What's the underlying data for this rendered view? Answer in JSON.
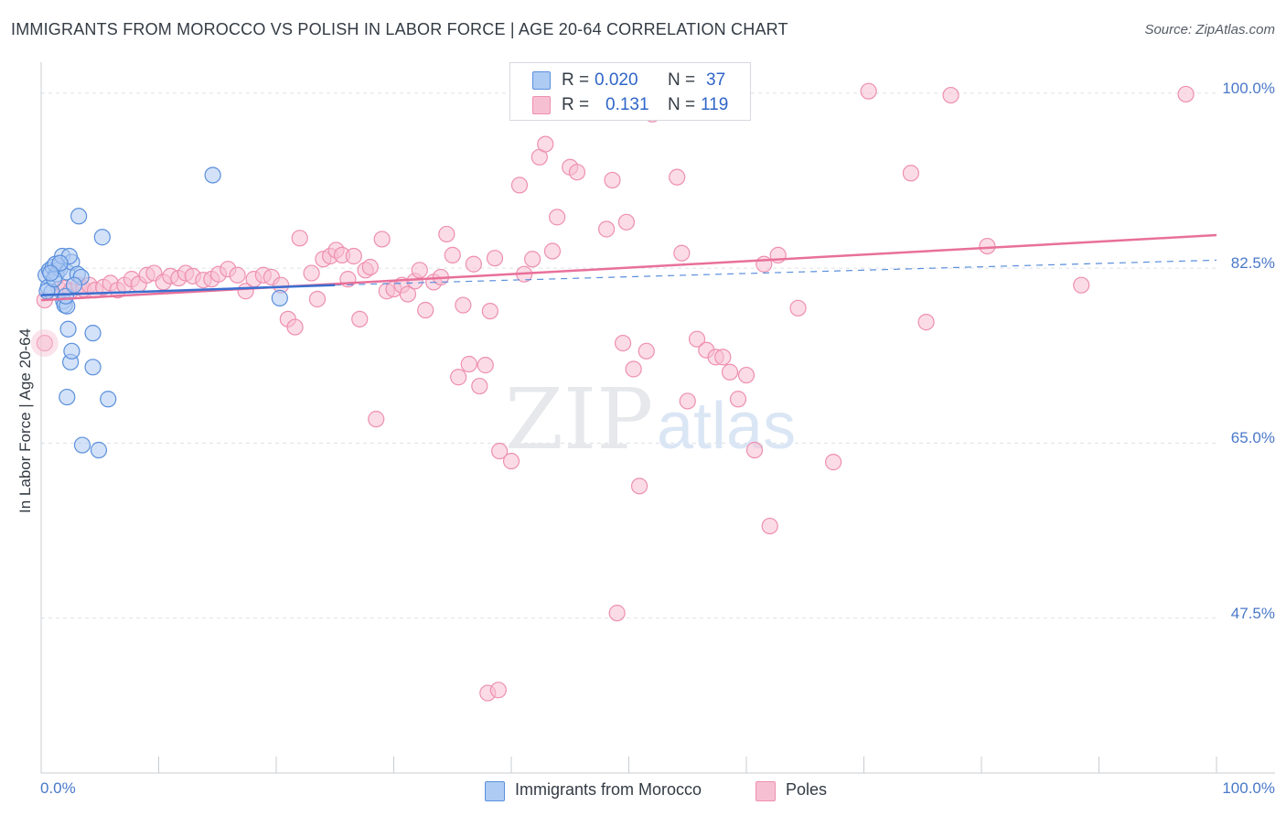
{
  "title": "IMMIGRANTS FROM MOROCCO VS POLISH IN LABOR FORCE | AGE 20-64 CORRELATION CHART",
  "source": "Source: ZipAtlas.com",
  "watermark": {
    "zip": "ZIP",
    "atlas": "atlas"
  },
  "legend": {
    "r_label": "R =",
    "n_label": "N =",
    "series": [
      {
        "r": "0.020",
        "n": "37"
      },
      {
        "r": "0.131",
        "n": "119"
      }
    ]
  },
  "colors": {
    "morocco_fill": "#aecbf3",
    "morocco_stroke": "#5a8fdc",
    "morocco_line": "#3a6fd0",
    "poles_fill": "#f7c0d2",
    "poles_stroke": "#ee8fb0",
    "poles_line": "#e8709a",
    "tick_label": "#4a78c8",
    "grid": "#dde1e6"
  },
  "chart_data": {
    "type": "scatter",
    "title": "IMMIGRANTS FROM MOROCCO VS POLISH IN LABOR FORCE | AGE 20-64 CORRELATION CHART",
    "xlabel": "",
    "ylabel": "In Labor Force | Age 20-64",
    "xlim": [
      0,
      100
    ],
    "ylim": [
      32,
      102
    ],
    "x_tick_labels": [
      "0.0%",
      "100.0%"
    ],
    "y_ticks": [
      100,
      82.5,
      65,
      47.5
    ],
    "y_tick_labels": [
      "100.0%",
      "82.5%",
      "65.0%",
      "47.5%"
    ],
    "grid": true,
    "legend_position": "top-center",
    "series": [
      {
        "name": "Immigrants from Morocco",
        "color": "#5a8fdc",
        "trend": {
          "x": [
            0,
            25
          ],
          "y": [
            79.8,
            80.8
          ],
          "dashed_to": [
            100,
            83.3
          ]
        },
        "points": [
          [
            0.4,
            81.8
          ],
          [
            0.7,
            82.3
          ],
          [
            1.0,
            82.6
          ],
          [
            1.3,
            81.9
          ],
          [
            0.6,
            80.6
          ],
          [
            0.9,
            80.1
          ],
          [
            1.5,
            82.7
          ],
          [
            1.6,
            82.4
          ],
          [
            1.2,
            82.9
          ],
          [
            1.8,
            83.7
          ],
          [
            2.2,
            82.1
          ],
          [
            2.6,
            83.1
          ],
          [
            2.4,
            83.7
          ],
          [
            3.1,
            81.9
          ],
          [
            3.4,
            81.6
          ],
          [
            1.9,
            79.2
          ],
          [
            2.0,
            78.8
          ],
          [
            2.2,
            78.7
          ],
          [
            2.1,
            79.7
          ],
          [
            2.8,
            80.8
          ],
          [
            0.5,
            80.2
          ],
          [
            3.2,
            87.7
          ],
          [
            5.2,
            85.6
          ],
          [
            14.6,
            91.8
          ],
          [
            20.3,
            79.5
          ],
          [
            2.3,
            76.4
          ],
          [
            2.5,
            73.1
          ],
          [
            2.6,
            74.2
          ],
          [
            4.4,
            76.0
          ],
          [
            4.4,
            72.6
          ],
          [
            2.2,
            69.6
          ],
          [
            5.7,
            69.4
          ],
          [
            3.5,
            64.8
          ],
          [
            4.9,
            64.3
          ],
          [
            1.1,
            81.4
          ],
          [
            1.6,
            83.0
          ],
          [
            0.8,
            82.0
          ]
        ]
      },
      {
        "name": "Poles",
        "color": "#ee8fb0",
        "trend": {
          "x": [
            0,
            100
          ],
          "y": [
            79.3,
            85.8
          ]
        },
        "points": [
          [
            0.3,
            79.3
          ],
          [
            0.3,
            75.0
          ],
          [
            1.5,
            80.4
          ],
          [
            2.0,
            80.5
          ],
          [
            2.5,
            80.2
          ],
          [
            3.2,
            80.8
          ],
          [
            3.6,
            80.4
          ],
          [
            4.1,
            80.8
          ],
          [
            4.6,
            80.3
          ],
          [
            5.3,
            80.6
          ],
          [
            5.9,
            81.0
          ],
          [
            6.5,
            80.3
          ],
          [
            7.1,
            80.8
          ],
          [
            7.7,
            81.4
          ],
          [
            8.3,
            80.9
          ],
          [
            9.0,
            81.8
          ],
          [
            9.6,
            82.0
          ],
          [
            10.4,
            81.1
          ],
          [
            11.0,
            81.7
          ],
          [
            11.7,
            81.5
          ],
          [
            12.3,
            82.0
          ],
          [
            12.9,
            81.7
          ],
          [
            13.8,
            81.3
          ],
          [
            14.5,
            81.4
          ],
          [
            15.1,
            81.9
          ],
          [
            15.9,
            82.4
          ],
          [
            16.7,
            81.8
          ],
          [
            17.4,
            80.2
          ],
          [
            18.1,
            81.4
          ],
          [
            18.9,
            81.8
          ],
          [
            19.6,
            81.6
          ],
          [
            20.4,
            80.8
          ],
          [
            21.0,
            77.4
          ],
          [
            21.6,
            76.6
          ],
          [
            22.0,
            85.5
          ],
          [
            23.0,
            82.0
          ],
          [
            23.5,
            79.4
          ],
          [
            24.0,
            83.4
          ],
          [
            24.6,
            83.7
          ],
          [
            25.1,
            84.3
          ],
          [
            25.6,
            83.8
          ],
          [
            26.1,
            81.4
          ],
          [
            26.6,
            83.7
          ],
          [
            27.1,
            77.4
          ],
          [
            27.6,
            82.3
          ],
          [
            28.0,
            82.6
          ],
          [
            28.5,
            67.4
          ],
          [
            29.0,
            85.4
          ],
          [
            29.4,
            80.2
          ],
          [
            30.0,
            80.4
          ],
          [
            30.7,
            80.8
          ],
          [
            31.2,
            79.9
          ],
          [
            31.8,
            81.2
          ],
          [
            32.2,
            82.3
          ],
          [
            32.7,
            78.3
          ],
          [
            33.4,
            81.1
          ],
          [
            34.0,
            81.6
          ],
          [
            34.5,
            85.9
          ],
          [
            35.0,
            83.8
          ],
          [
            35.5,
            71.6
          ],
          [
            35.9,
            78.8
          ],
          [
            36.4,
            72.9
          ],
          [
            36.8,
            82.9
          ],
          [
            37.3,
            70.7
          ],
          [
            37.8,
            72.8
          ],
          [
            38.2,
            78.2
          ],
          [
            38.6,
            83.5
          ],
          [
            38.0,
            40.0
          ],
          [
            38.9,
            40.3
          ],
          [
            39.0,
            64.2
          ],
          [
            40.0,
            63.2
          ],
          [
            40.7,
            90.8
          ],
          [
            41.1,
            81.9
          ],
          [
            41.8,
            83.4
          ],
          [
            42.4,
            93.6
          ],
          [
            42.9,
            94.9
          ],
          [
            43.5,
            84.2
          ],
          [
            43.9,
            87.6
          ],
          [
            44.5,
            100.0
          ],
          [
            45.0,
            92.6
          ],
          [
            45.6,
            92.1
          ],
          [
            46.2,
            100.8
          ],
          [
            46.7,
            99.8
          ],
          [
            47.1,
            98.6
          ],
          [
            47.6,
            100.5
          ],
          [
            48.1,
            86.4
          ],
          [
            48.6,
            91.3
          ],
          [
            49.0,
            48.0
          ],
          [
            49.5,
            75.0
          ],
          [
            49.8,
            87.1
          ],
          [
            50.4,
            72.4
          ],
          [
            50.9,
            60.7
          ],
          [
            51.5,
            74.2
          ],
          [
            52.0,
            97.9
          ],
          [
            52.6,
            99.8
          ],
          [
            53.1,
            100.7
          ],
          [
            54.1,
            91.6
          ],
          [
            54.5,
            84.0
          ],
          [
            55.0,
            69.2
          ],
          [
            55.8,
            75.4
          ],
          [
            56.6,
            74.3
          ],
          [
            57.4,
            73.6
          ],
          [
            58.0,
            73.6
          ],
          [
            58.6,
            72.1
          ],
          [
            59.3,
            69.4
          ],
          [
            60.0,
            71.8
          ],
          [
            60.7,
            64.3
          ],
          [
            61.5,
            82.9
          ],
          [
            62.0,
            56.7
          ],
          [
            62.7,
            83.8
          ],
          [
            64.4,
            78.5
          ],
          [
            67.4,
            63.1
          ],
          [
            70.4,
            100.2
          ],
          [
            74.0,
            92.0
          ],
          [
            75.3,
            77.1
          ],
          [
            77.4,
            99.8
          ],
          [
            80.5,
            84.7
          ],
          [
            88.5,
            80.8
          ],
          [
            97.4,
            99.9
          ]
        ]
      }
    ]
  },
  "axis": {
    "y_title": "In Labor Force | Age 20-64",
    "x_left": "0.0%",
    "x_right": "100.0%",
    "y_labels": [
      "100.0%",
      "82.5%",
      "65.0%",
      "47.5%"
    ]
  },
  "bottom_legend": [
    "Immigrants from Morocco",
    "Poles"
  ]
}
